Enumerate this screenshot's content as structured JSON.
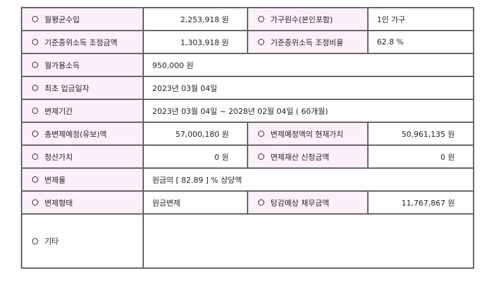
{
  "rows": [
    {
      "label": "월평균수입",
      "value": "2,253,918 원",
      "label2": "가구원수(본인포함)",
      "value2": "1인 가구"
    },
    {
      "label": "기준중위소득 조정금액",
      "value": "1,303,918 원",
      "label2": "기준중위소득 조정비율",
      "value2": "62.8 %"
    },
    {
      "label": "월가용소득",
      "value": "950,000 원"
    },
    {
      "label": "최초 입금일자",
      "value": "2023년 03월 04일"
    },
    {
      "label": "변제기간",
      "value": "2023년 03월 04일 ~ 2028년 02월 04일 ( 60개월)"
    },
    {
      "label": "총변제예정(유보)액",
      "value": "57,000,180 원",
      "label2": "변제예정액의 현재가치",
      "value2": "50,961,135 원"
    },
    {
      "label": "청산가치",
      "value": "0 원",
      "label2": "면제재산 신청금액",
      "value2": "0 원"
    },
    {
      "label": "변제율",
      "value": "원금의 [ 82.89 ] % 상당액"
    },
    {
      "label": "변제형태",
      "value": "원금변제",
      "label2": "탕감예상 채무금액",
      "value2": "11,767,867 원"
    },
    {
      "label": "기타",
      "value": ""
    }
  ],
  "colors": {
    "label_bg": "#fcf0fb",
    "border": "#666666"
  }
}
